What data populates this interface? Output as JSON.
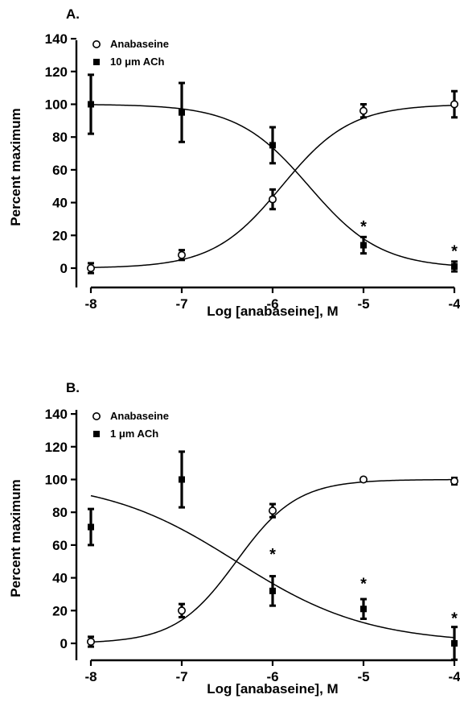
{
  "chart_data": [
    {
      "type": "scatter",
      "panel_label": "A.",
      "xlabel": "Log [anabaseine], M",
      "ylabel": "Percent maximum",
      "xlim": [
        -8,
        -4
      ],
      "ylim": [
        -10,
        140
      ],
      "xticks": [
        -8,
        -7,
        -6,
        -5,
        -4
      ],
      "yticks": [
        0,
        20,
        40,
        60,
        80,
        100,
        120,
        140
      ],
      "legend_position": "top-left",
      "series": [
        {
          "name": "Anabaseine",
          "marker": "open-circle",
          "x": [
            -8,
            -7,
            -6,
            -5,
            -4
          ],
          "y": [
            0,
            8,
            42,
            96,
            100
          ],
          "err": [
            3,
            3,
            6,
            4,
            8
          ],
          "curve": {
            "bottom": 0,
            "top": 100,
            "log_ec50": -5.9,
            "hill": 1.15
          }
        },
        {
          "name": "10 μm ACh",
          "marker": "filled-square",
          "x": [
            -8,
            -7,
            -6,
            -5,
            -4
          ],
          "y": [
            100,
            95,
            75,
            14,
            1
          ],
          "err": [
            18,
            18,
            11,
            5,
            3
          ],
          "curve": {
            "bottom": 0,
            "top": 100,
            "log_ec50": -5.6,
            "hill": -1.1
          }
        }
      ],
      "significance": [
        {
          "x": -5,
          "label": "*",
          "y": 28
        },
        {
          "x": -4,
          "label": "*",
          "y": 13
        }
      ]
    },
    {
      "type": "scatter",
      "panel_label": "B.",
      "xlabel": "Log [anabaseine], M",
      "ylabel": "Percent maximum",
      "xlim": [
        -8,
        -4
      ],
      "ylim": [
        -10,
        140
      ],
      "xticks": [
        -8,
        -7,
        -6,
        -5,
        -4
      ],
      "yticks": [
        0,
        20,
        40,
        60,
        80,
        100,
        120,
        140
      ],
      "legend_position": "top-left",
      "series": [
        {
          "name": "Anabaseine",
          "marker": "open-circle",
          "x": [
            -8,
            -7,
            -6,
            -5,
            -4
          ],
          "y": [
            1,
            20,
            81,
            100,
            99
          ],
          "err": [
            3,
            4,
            4,
            1,
            2
          ],
          "curve": {
            "bottom": 0,
            "top": 100,
            "log_ec50": -6.4,
            "hill": 1.3
          }
        },
        {
          "name": "1 μm ACh",
          "marker": "filled-square",
          "x": [
            -8,
            -7,
            -6,
            -5,
            -4
          ],
          "y": [
            71,
            100,
            32,
            21,
            0
          ],
          "err": [
            11,
            17,
            9,
            6,
            10
          ],
          "curve": {
            "bottom": 0,
            "top": 100,
            "log_ec50": -6.4,
            "hill": -0.6
          }
        }
      ],
      "significance": [
        {
          "x": -6,
          "label": "*",
          "y": 57
        },
        {
          "x": -5,
          "label": "*",
          "y": 39
        },
        {
          "x": -4,
          "label": "*",
          "y": 18
        }
      ]
    }
  ]
}
